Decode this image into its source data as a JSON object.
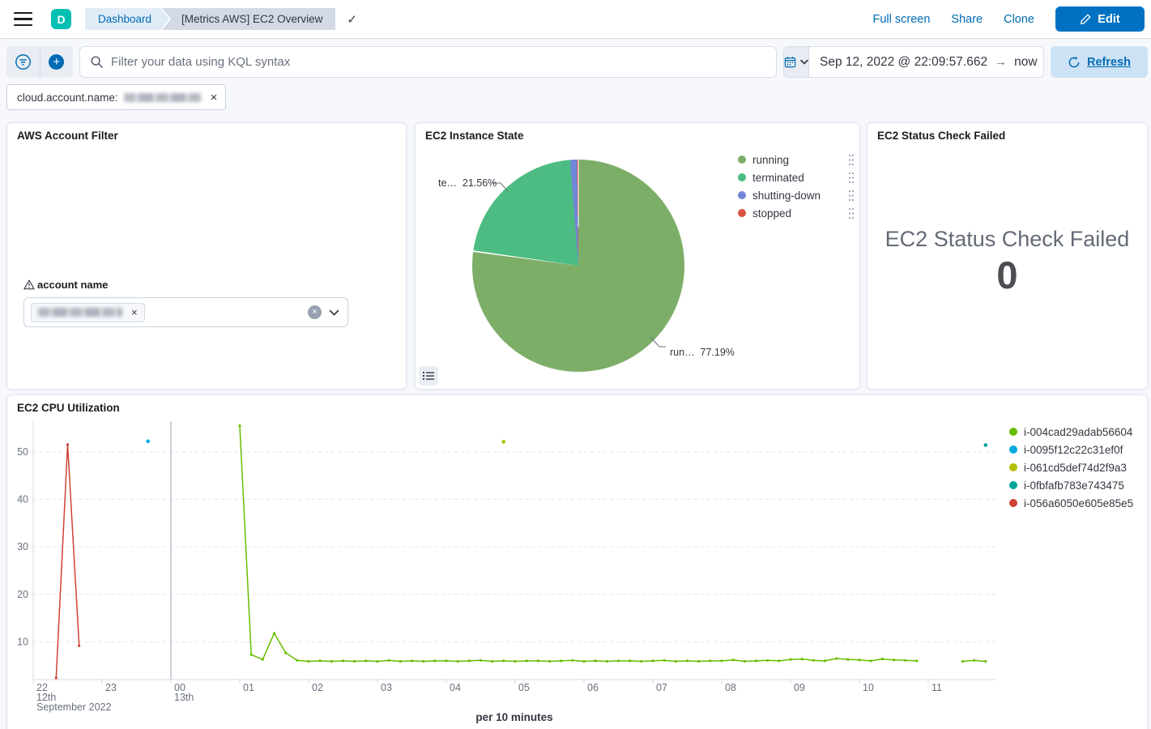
{
  "header": {
    "logo": "D",
    "breadcrumbs": [
      "Dashboard",
      "[Metrics AWS] EC2 Overview"
    ],
    "actions": [
      "Full screen",
      "Share",
      "Clone"
    ],
    "edit_label": "Edit"
  },
  "filter_bar": {
    "search_placeholder": "Filter your data using KQL syntax",
    "date_start": "Sep 12, 2022 @ 22:09:57.662",
    "date_arrow": "→",
    "date_end": "now",
    "refresh_label": "Refresh"
  },
  "filter_pill": {
    "field": "cloud.account.name:",
    "value_redacted": true
  },
  "panels": {
    "account_filter": {
      "title": "AWS Account Filter",
      "field_label": "account name",
      "selection_redacted": true
    },
    "instance_state": {
      "title": "EC2 Instance State",
      "callouts": [
        "te…  21.56%",
        "run…  77.19%"
      ]
    },
    "status_check": {
      "title": "EC2 Status Check Failed",
      "metric_label": "EC2 Status Check Failed",
      "metric_value": "0"
    },
    "cpu": {
      "title": "EC2 CPU Utilization",
      "xlabel": "per 10 minutes"
    }
  },
  "colors": {
    "accent_blue": "#006bb4",
    "edit_button": "#0071c2",
    "logo_teal": "#00bfb3",
    "pie_running": "#7cae68",
    "pie_terminated": "#4dbc82",
    "pie_shutting_down": "#7086d8",
    "pie_stopped": "#db5140"
  },
  "chart_data": [
    {
      "type": "pie",
      "title": "EC2 Instance State",
      "slices": [
        {
          "label": "running",
          "value": 77.19,
          "color": "#7cae68"
        },
        {
          "label": "terminated",
          "value": 21.56,
          "color": "#4dbc82"
        },
        {
          "label": "shutting-down",
          "value": 1.05,
          "color": "#7086d8"
        },
        {
          "label": "stopped",
          "value": 0.2,
          "color": "#db5140"
        }
      ],
      "visible_labels": [
        "te…  21.56%",
        "run…  77.19%"
      ],
      "legend_position": "right"
    },
    {
      "type": "line",
      "title": "EC2 CPU Utilization",
      "xlabel": "per 10 minutes",
      "ylabel": "",
      "yticks": [
        10,
        20,
        30,
        40,
        50
      ],
      "ylim": [
        2,
        56.5
      ],
      "xticks": [
        "22",
        "23",
        "00",
        "01",
        "02",
        "03",
        "04",
        "05",
        "06",
        "07",
        "08",
        "09",
        "10",
        "11"
      ],
      "day_labels": [
        {
          "tick_index": 0,
          "lines": [
            "12th",
            "September 2022"
          ]
        },
        {
          "tick_index": 2,
          "lines": [
            "13th"
          ]
        }
      ],
      "grid": "horizontal-dashed",
      "legend_position": "right",
      "series": [
        {
          "name": "i-004cad29adab56604",
          "color": "#68bc00",
          "points": [
            [
              "01:00",
              55.5
            ],
            [
              "01:10",
              7.3
            ],
            [
              "01:20",
              6.3
            ],
            [
              "01:30",
              11.8
            ],
            [
              "01:40",
              7.7
            ],
            [
              "01:50",
              6.1
            ],
            [
              "02:00",
              5.9
            ],
            [
              "02:10",
              6.0
            ],
            [
              "02:20",
              5.9
            ],
            [
              "02:30",
              6.0
            ],
            [
              "02:40",
              5.9
            ],
            [
              "02:50",
              6.0
            ],
            [
              "03:00",
              5.9
            ],
            [
              "03:10",
              6.1
            ],
            [
              "03:20",
              5.9
            ],
            [
              "03:30",
              6.0
            ],
            [
              "03:40",
              5.9
            ],
            [
              "03:50",
              6.0
            ],
            [
              "04:00",
              6.0
            ],
            [
              "04:10",
              5.9
            ],
            [
              "04:20",
              6.0
            ],
            [
              "04:30",
              6.1
            ],
            [
              "04:40",
              5.9
            ],
            [
              "04:50",
              6.0
            ],
            [
              "05:00",
              5.9
            ],
            [
              "05:10",
              6.0
            ],
            [
              "05:20",
              6.0
            ],
            [
              "05:30",
              5.9
            ],
            [
              "05:40",
              6.0
            ],
            [
              "05:50",
              6.1
            ],
            [
              "06:00",
              5.9
            ],
            [
              "06:10",
              6.0
            ],
            [
              "06:20",
              5.9
            ],
            [
              "06:30",
              6.0
            ],
            [
              "06:40",
              6.0
            ],
            [
              "06:50",
              5.9
            ],
            [
              "07:00",
              6.0
            ],
            [
              "07:10",
              6.1
            ],
            [
              "07:20",
              5.9
            ],
            [
              "07:30",
              6.0
            ],
            [
              "07:40",
              5.9
            ],
            [
              "07:50",
              6.0
            ],
            [
              "08:00",
              6.0
            ],
            [
              "08:10",
              6.2
            ],
            [
              "08:20",
              5.9
            ],
            [
              "08:30",
              6.0
            ],
            [
              "08:40",
              6.1
            ],
            [
              "08:50",
              6.0
            ],
            [
              "09:00",
              6.3
            ],
            [
              "09:10",
              6.4
            ],
            [
              "09:20",
              6.1
            ],
            [
              "09:30",
              6.0
            ],
            [
              "09:40",
              6.5
            ],
            [
              "09:50",
              6.3
            ],
            [
              "10:00",
              6.2
            ],
            [
              "10:10",
              6.0
            ],
            [
              "10:20",
              6.4
            ],
            [
              "10:30",
              6.2
            ],
            [
              "10:40",
              6.1
            ],
            [
              "10:50",
              6.0
            ],
            [
              "11:30",
              5.9
            ],
            [
              "11:40",
              6.1
            ],
            [
              "11:50",
              5.9
            ]
          ]
        },
        {
          "name": "i-0095f12c22c31ef0f",
          "color": "#00a9e0",
          "points": [
            [
              "23:40",
              52.2
            ]
          ]
        },
        {
          "name": "i-061cd5def74d2f9a3",
          "color": "#b2bf00",
          "points": [
            [
              "04:50",
              52.1
            ]
          ]
        },
        {
          "name": "i-0fbfafb783e743475",
          "color": "#00a69b",
          "points": [
            [
              "11:50",
              51.4
            ]
          ]
        },
        {
          "name": "i-056a6050e605e85e5",
          "color": "#ce4234",
          "points": [
            [
              "22:20",
              2.4
            ],
            [
              "22:30",
              51.5
            ],
            [
              "22:40",
              9.2
            ]
          ]
        }
      ]
    }
  ]
}
